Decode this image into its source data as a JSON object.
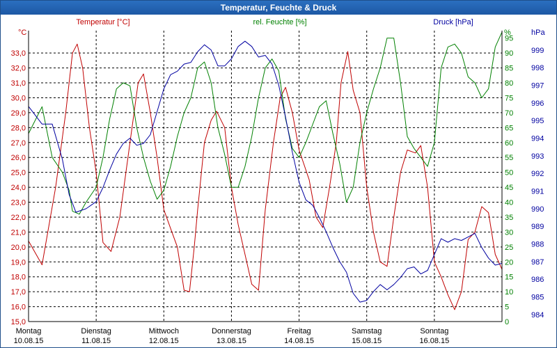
{
  "window": {
    "title": "Temperatur, Feuchte & Druck"
  },
  "colors": {
    "temperature": "#c00000",
    "humidity": "#008000",
    "pressure": "#0000a0",
    "axis": "#000000",
    "grid": "#000000",
    "titlebar": "#1d58a4"
  },
  "chart_data": {
    "type": "line",
    "title": "Temperatur, Feuchte & Druck",
    "x": {
      "range": [
        0,
        7
      ],
      "day_labels": [
        {
          "day": "Montag",
          "date": "10.08.15",
          "x": 0
        },
        {
          "day": "Dienstag",
          "date": "11.08.15",
          "x": 1
        },
        {
          "day": "Mittwoch",
          "date": "12.08.15",
          "x": 2
        },
        {
          "day": "Donnerstag",
          "date": "13.08.15",
          "x": 3
        },
        {
          "day": "Freitag",
          "date": "14.08.15",
          "x": 4
        },
        {
          "day": "Samstag",
          "date": "15.08.15",
          "x": 5
        },
        {
          "day": "Sonntag",
          "date": "16.08.15",
          "x": 6
        }
      ]
    },
    "axes": {
      "temperature": {
        "label": "Temperatur [°C]",
        "unit": "°C",
        "range": [
          15,
          34.5
        ],
        "ticks": [
          "15,0",
          "16,0",
          "17,0",
          "18,0",
          "19,0",
          "20,0",
          "21,0",
          "22,0",
          "23,0",
          "24,0",
          "25,0",
          "26,0",
          "27,0",
          "28,0",
          "29,0",
          "30,0",
          "31,0",
          "32,0",
          "33,0"
        ]
      },
      "humidity": {
        "label": "rel. Feuchte [%]",
        "unit": "%",
        "range": [
          0,
          97.5
        ],
        "ticks": [
          "0",
          "5",
          "10",
          "15",
          "20",
          "25",
          "30",
          "35",
          "40",
          "45",
          "50",
          "55",
          "60",
          "65",
          "70",
          "75",
          "80",
          "85",
          "90",
          "95"
        ]
      },
      "pressure": {
        "label": "Druck [hPa]",
        "unit": "hPa",
        "range": [
          983.6,
          1000.1
        ],
        "ticks": [
          "984",
          "985",
          "986",
          "987",
          "988",
          "989",
          "990",
          "991",
          "992",
          "993",
          "994",
          "995",
          "996",
          "997",
          "998",
          "999"
        ]
      }
    },
    "series": [
      {
        "name": "Temperatur",
        "axis": "temperature",
        "points": [
          [
            0,
            20.4
          ],
          [
            0.2,
            18.8
          ],
          [
            0.4,
            24
          ],
          [
            0.55,
            29
          ],
          [
            0.65,
            33
          ],
          [
            0.72,
            33.6
          ],
          [
            0.8,
            32
          ],
          [
            0.9,
            28
          ],
          [
            1,
            25
          ],
          [
            1.1,
            20.3
          ],
          [
            1.22,
            19.7
          ],
          [
            1.35,
            22
          ],
          [
            1.5,
            27
          ],
          [
            1.62,
            31
          ],
          [
            1.7,
            31.6
          ],
          [
            1.8,
            29
          ],
          [
            1.9,
            26
          ],
          [
            2,
            22.5
          ],
          [
            2.12,
            21
          ],
          [
            2.2,
            20
          ],
          [
            2.3,
            17.1
          ],
          [
            2.38,
            17.0
          ],
          [
            2.45,
            20
          ],
          [
            2.5,
            22.5
          ],
          [
            2.6,
            27
          ],
          [
            2.7,
            28.5
          ],
          [
            2.78,
            29.1
          ],
          [
            2.9,
            28
          ],
          [
            3,
            24
          ],
          [
            3.1,
            21.5
          ],
          [
            3.2,
            19.5
          ],
          [
            3.3,
            17.5
          ],
          [
            3.4,
            17.1
          ],
          [
            3.5,
            22.5
          ],
          [
            3.62,
            27
          ],
          [
            3.72,
            30
          ],
          [
            3.8,
            30.7
          ],
          [
            3.9,
            29
          ],
          [
            4,
            26.5
          ],
          [
            4.15,
            24.5
          ],
          [
            4.25,
            22
          ],
          [
            4.35,
            21.3
          ],
          [
            4.45,
            24
          ],
          [
            4.55,
            27
          ],
          [
            4.62,
            31
          ],
          [
            4.72,
            33.1
          ],
          [
            4.8,
            30.5
          ],
          [
            4.9,
            29
          ],
          [
            5,
            24
          ],
          [
            5.1,
            21
          ],
          [
            5.2,
            19
          ],
          [
            5.3,
            18.7
          ],
          [
            5.4,
            22
          ],
          [
            5.5,
            25
          ],
          [
            5.6,
            26.5
          ],
          [
            5.72,
            26.3
          ],
          [
            5.8,
            26.8
          ],
          [
            5.9,
            24
          ],
          [
            6,
            19
          ],
          [
            6.1,
            18
          ],
          [
            6.2,
            16.8
          ],
          [
            6.3,
            15.8
          ],
          [
            6.4,
            17
          ],
          [
            6.5,
            20.5
          ],
          [
            6.6,
            21
          ],
          [
            6.7,
            22.7
          ],
          [
            6.8,
            22.3
          ],
          [
            6.9,
            19.5
          ],
          [
            7,
            18.5
          ]
        ]
      },
      {
        "name": "rel. Feuchte",
        "axis": "humidity",
        "points": [
          [
            0,
            63
          ],
          [
            0.2,
            72
          ],
          [
            0.35,
            55
          ],
          [
            0.5,
            50
          ],
          [
            0.6,
            44
          ],
          [
            0.65,
            37
          ],
          [
            0.75,
            36
          ],
          [
            0.85,
            40
          ],
          [
            1,
            45
          ],
          [
            1.1,
            55
          ],
          [
            1.2,
            68
          ],
          [
            1.3,
            78
          ],
          [
            1.4,
            80
          ],
          [
            1.5,
            79
          ],
          [
            1.6,
            65
          ],
          [
            1.7,
            55
          ],
          [
            1.8,
            47
          ],
          [
            1.9,
            41
          ],
          [
            2,
            44
          ],
          [
            2.1,
            52
          ],
          [
            2.2,
            62
          ],
          [
            2.3,
            70
          ],
          [
            2.4,
            75
          ],
          [
            2.5,
            85
          ],
          [
            2.6,
            87
          ],
          [
            2.7,
            80
          ],
          [
            2.8,
            65
          ],
          [
            2.9,
            56
          ],
          [
            3,
            45
          ],
          [
            3.1,
            45
          ],
          [
            3.2,
            52
          ],
          [
            3.3,
            62
          ],
          [
            3.4,
            75
          ],
          [
            3.5,
            85
          ],
          [
            3.6,
            88
          ],
          [
            3.7,
            84
          ],
          [
            3.8,
            68
          ],
          [
            3.9,
            58
          ],
          [
            4,
            55
          ],
          [
            4.1,
            60
          ],
          [
            4.2,
            66
          ],
          [
            4.3,
            72
          ],
          [
            4.4,
            74
          ],
          [
            4.5,
            63
          ],
          [
            4.6,
            53
          ],
          [
            4.7,
            40
          ],
          [
            4.8,
            45
          ],
          [
            4.9,
            60
          ],
          [
            5,
            70
          ],
          [
            5.1,
            78
          ],
          [
            5.2,
            85
          ],
          [
            5.3,
            95
          ],
          [
            5.4,
            95
          ],
          [
            5.5,
            80
          ],
          [
            5.6,
            62
          ],
          [
            5.7,
            58
          ],
          [
            5.8,
            55
          ],
          [
            5.9,
            52
          ],
          [
            6,
            60
          ],
          [
            6.1,
            85
          ],
          [
            6.2,
            92
          ],
          [
            6.3,
            93
          ],
          [
            6.4,
            90
          ],
          [
            6.5,
            82
          ],
          [
            6.6,
            80
          ],
          [
            6.7,
            75
          ],
          [
            6.8,
            78
          ],
          [
            6.9,
            92
          ],
          [
            7,
            97
          ]
        ]
      },
      {
        "name": "Druck",
        "axis": "pressure",
        "points": [
          [
            0,
            995.8
          ],
          [
            0.2,
            994.8
          ],
          [
            0.35,
            994.8
          ],
          [
            0.5,
            992.8
          ],
          [
            0.6,
            990.8
          ],
          [
            0.7,
            989.8
          ],
          [
            0.85,
            990.0
          ],
          [
            1,
            990.4
          ],
          [
            1.1,
            991.2
          ],
          [
            1.2,
            992.2
          ],
          [
            1.3,
            993.1
          ],
          [
            1.4,
            993.7
          ],
          [
            1.5,
            994.0
          ],
          [
            1.6,
            993.6
          ],
          [
            1.7,
            993.7
          ],
          [
            1.8,
            994.2
          ],
          [
            1.9,
            995.5
          ],
          [
            2,
            996.8
          ],
          [
            2.1,
            997.6
          ],
          [
            2.2,
            997.8
          ],
          [
            2.3,
            998.2
          ],
          [
            2.4,
            998.3
          ],
          [
            2.5,
            998.9
          ],
          [
            2.6,
            999.3
          ],
          [
            2.7,
            999.0
          ],
          [
            2.8,
            998.1
          ],
          [
            2.9,
            998.1
          ],
          [
            3,
            998.5
          ],
          [
            3.1,
            999.2
          ],
          [
            3.2,
            999.5
          ],
          [
            3.3,
            999.2
          ],
          [
            3.4,
            998.6
          ],
          [
            3.5,
            998.7
          ],
          [
            3.6,
            998.2
          ],
          [
            3.7,
            997.0
          ],
          [
            3.8,
            995.2
          ],
          [
            3.9,
            993.2
          ],
          [
            4,
            991.5
          ],
          [
            4.1,
            990.5
          ],
          [
            4.2,
            990.2
          ],
          [
            4.3,
            989.5
          ],
          [
            4.4,
            988.7
          ],
          [
            4.5,
            987.8
          ],
          [
            4.6,
            987.0
          ],
          [
            4.7,
            986.4
          ],
          [
            4.8,
            985.2
          ],
          [
            4.9,
            984.7
          ],
          [
            5,
            984.8
          ],
          [
            5.1,
            985.3
          ],
          [
            5.2,
            985.7
          ],
          [
            5.3,
            985.4
          ],
          [
            5.4,
            985.7
          ],
          [
            5.5,
            986.1
          ],
          [
            5.6,
            986.6
          ],
          [
            5.7,
            986.7
          ],
          [
            5.8,
            986.3
          ],
          [
            5.9,
            986.5
          ],
          [
            6,
            987.4
          ],
          [
            6.1,
            988.3
          ],
          [
            6.2,
            988.1
          ],
          [
            6.3,
            988.3
          ],
          [
            6.4,
            988.2
          ],
          [
            6.5,
            988.4
          ],
          [
            6.6,
            988.6
          ],
          [
            6.7,
            987.8
          ],
          [
            6.8,
            987.2
          ],
          [
            6.9,
            986.8
          ],
          [
            7,
            986.9
          ]
        ]
      }
    ],
    "grid": true,
    "legend": "top"
  }
}
